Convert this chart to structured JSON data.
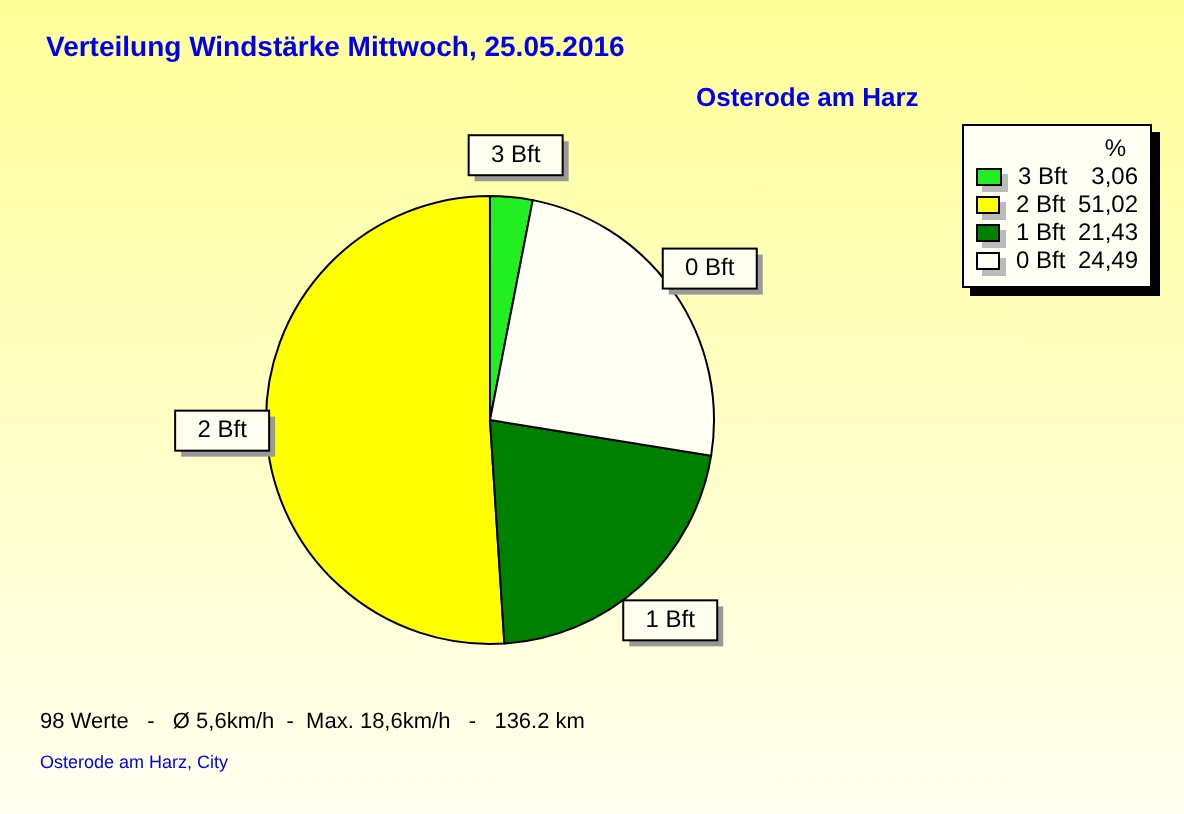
{
  "chart_data": {
    "type": "pie",
    "title": "Verteilung Windstärke  Mittwoch, 25.05.2016",
    "subtitle": "Osterode am Harz",
    "categories": [
      "3 Bft",
      "2 Bft",
      "1 Bft",
      "0 Bft"
    ],
    "values": [
      3.06,
      51.02,
      21.43,
      24.49
    ],
    "value_labels": [
      "3,06",
      "51,02",
      "21,43",
      "24,49"
    ],
    "colors": [
      "#22ee22",
      "#ffff00",
      "#008000",
      "#fffff4"
    ],
    "legend": "top right",
    "legend_title": "%",
    "annotations": [
      "98 Werte   -   Ø 5,6km/h  -  Max. 18,6km/h   -   136.2 km",
      "Osterode am Harz, City"
    ]
  }
}
